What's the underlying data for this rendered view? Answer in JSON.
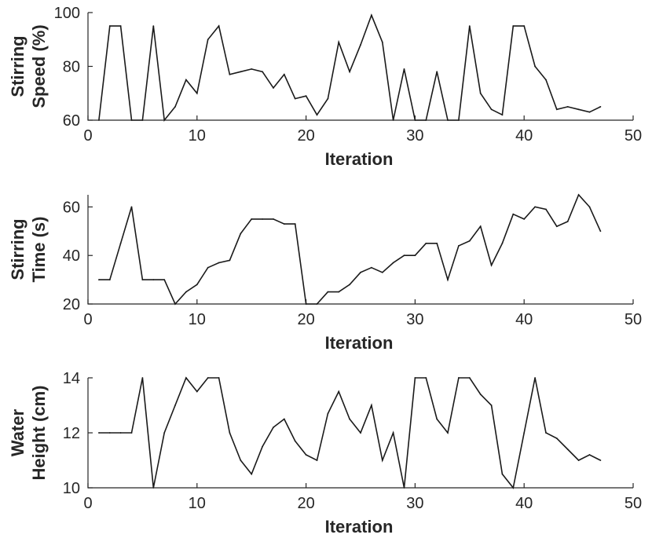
{
  "chart_data": [
    {
      "type": "line",
      "xlabel": "Iteration",
      "ylabel_lines": [
        "Stirring",
        "Speed (%)"
      ],
      "xlim": [
        0,
        50
      ],
      "ylim": [
        60,
        100
      ],
      "xticks": [
        0,
        10,
        20,
        30,
        40,
        50
      ],
      "yticks": [
        60,
        80,
        100
      ],
      "grid": false,
      "series": [
        {
          "x": [
            1,
            2,
            3,
            4,
            5,
            6,
            7,
            8,
            9,
            10,
            11,
            12,
            13,
            14,
            15,
            16,
            17,
            18,
            19,
            20,
            21,
            22,
            23,
            24,
            25,
            26,
            27,
            28,
            29,
            30,
            31,
            32,
            33,
            34,
            35,
            36,
            37,
            38,
            39,
            40,
            41,
            42,
            43,
            44,
            45,
            46,
            47
          ],
          "y": [
            60,
            95,
            95,
            60,
            60,
            95,
            60,
            65,
            75,
            70,
            90,
            95,
            77,
            78,
            79,
            78,
            72,
            77,
            68,
            69,
            62,
            68,
            89,
            78,
            88,
            99,
            89,
            60,
            79,
            60,
            60,
            78,
            60,
            60,
            95,
            70,
            64,
            62,
            95,
            95,
            80,
            75,
            64,
            65,
            64,
            63,
            65
          ]
        }
      ]
    },
    {
      "type": "line",
      "xlabel": "Iteration",
      "ylabel_lines": [
        "Stirring",
        "Time (s)"
      ],
      "xlim": [
        0,
        50
      ],
      "ylim": [
        20,
        65
      ],
      "xticks": [
        0,
        10,
        20,
        30,
        40,
        50
      ],
      "yticks": [
        20,
        40,
        60
      ],
      "grid": false,
      "series": [
        {
          "x": [
            1,
            2,
            3,
            4,
            5,
            6,
            7,
            8,
            9,
            10,
            11,
            12,
            13,
            14,
            15,
            16,
            17,
            18,
            19,
            20,
            21,
            22,
            23,
            24,
            25,
            26,
            27,
            28,
            29,
            30,
            31,
            32,
            33,
            34,
            35,
            36,
            37,
            38,
            39,
            40,
            41,
            42,
            43,
            44,
            45,
            46,
            47
          ],
          "y": [
            30,
            30,
            45,
            60,
            30,
            30,
            30,
            20,
            25,
            28,
            35,
            37,
            38,
            49,
            55,
            55,
            55,
            53,
            53,
            20,
            20,
            25,
            25,
            28,
            33,
            35,
            33,
            37,
            40,
            40,
            45,
            45,
            30,
            44,
            46,
            52,
            36,
            45,
            57,
            55,
            60,
            59,
            52,
            54,
            65,
            60,
            50
          ]
        }
      ]
    },
    {
      "type": "line",
      "xlabel": "Iteration",
      "ylabel_lines": [
        "Water",
        "Height (cm)"
      ],
      "xlim": [
        0,
        50
      ],
      "ylim": [
        10,
        14
      ],
      "xticks": [
        0,
        10,
        20,
        30,
        40,
        50
      ],
      "yticks": [
        10,
        12,
        14
      ],
      "grid": false,
      "series": [
        {
          "x": [
            1,
            2,
            3,
            4,
            5,
            6,
            7,
            8,
            9,
            10,
            11,
            12,
            13,
            14,
            15,
            16,
            17,
            18,
            19,
            20,
            21,
            22,
            23,
            24,
            25,
            26,
            27,
            28,
            29,
            30,
            31,
            32,
            33,
            34,
            35,
            36,
            37,
            38,
            39,
            40,
            41,
            42,
            43,
            44,
            45,
            46,
            47
          ],
          "y": [
            12,
            12,
            12,
            12,
            14,
            10,
            12,
            13,
            14,
            13.5,
            14,
            14,
            12,
            11,
            10.5,
            11.5,
            12.2,
            12.5,
            11.7,
            11.2,
            11,
            12.7,
            13.5,
            12.5,
            12,
            13,
            11,
            12,
            10,
            14,
            14,
            12.5,
            12,
            14,
            14,
            13.4,
            13,
            10.5,
            10,
            12,
            14,
            12,
            11.8,
            11.4,
            11,
            11.2,
            11
          ]
        }
      ]
    }
  ]
}
